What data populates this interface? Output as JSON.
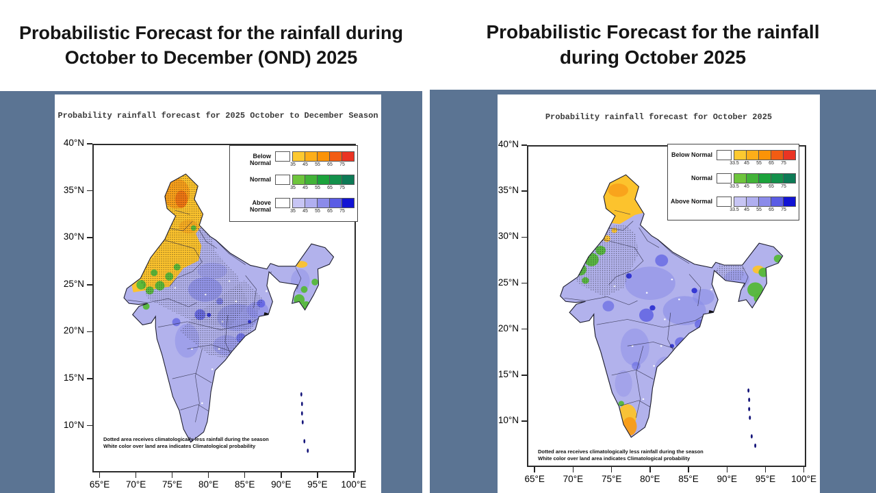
{
  "page": {
    "background_color": "#5b7493",
    "divider_color": "#ffffff"
  },
  "palette": {
    "map_base": "#b2b2ec",
    "blue_mid": "#8b8de8",
    "blue_deep": "#5a5de2",
    "blue_darkest": "#2023cf",
    "green": "#55b83a",
    "yellow": "#fcc32d",
    "orange": "#f89c18",
    "orange_deep": "#ef6f12",
    "red": "#e03420",
    "island_dark": "#15157a",
    "map_border": "#1d1d2e"
  },
  "panels": [
    {
      "header_title": [
        "Probabilistic Forecast for the rainfall during",
        "October to December (OND) 2025"
      ],
      "figure_title": "Probability rainfall forecast for 2025 October to December Season",
      "y_axis_ticks": [
        "40°N",
        "35°N",
        "30°N",
        "25°N",
        "20°N",
        "15°N",
        "10°N"
      ],
      "x_axis_ticks": [
        "65°E",
        "70°E",
        "75°E",
        "80°E",
        "85°E",
        "90°E",
        "95°E",
        "100°E"
      ],
      "legend_rows": [
        {
          "label": "Below Normal",
          "ticks": [
            "35",
            "45",
            "55",
            "65",
            "75"
          ],
          "colors": [
            "#ffffff",
            "#fdc930",
            "#fdae19",
            "#fb9307",
            "#f25c13",
            "#ea3423"
          ]
        },
        {
          "label": "Normal",
          "ticks": [
            "35",
            "45",
            "55",
            "65",
            "75"
          ],
          "colors": [
            "#ffffff",
            "#6ec53c",
            "#42b338",
            "#1ba23b",
            "#13914b",
            "#0d7a55"
          ]
        },
        {
          "label": "Above Normal",
          "ticks": [
            "35",
            "45",
            "55",
            "65",
            "75"
          ],
          "colors": [
            "#ffffff",
            "#c7c5f4",
            "#b0aff0",
            "#8b8bea",
            "#5a5ce5",
            "#1113d4"
          ]
        }
      ],
      "footnote": [
        "Dotted area receives climatologically less rainfall during the season",
        "White color over land area indicates Climatological probability"
      ]
    },
    {
      "header_title": [
        "Probabilistic Forecast for the rainfall",
        "during October 2025"
      ],
      "figure_title": "Probability rainfall forecast for October 2025",
      "y_axis_ticks": [
        "40°N",
        "35°N",
        "30°N",
        "25°N",
        "20°N",
        "15°N",
        "10°N"
      ],
      "x_axis_ticks": [
        "65°E",
        "70°E",
        "75°E",
        "80°E",
        "85°E",
        "90°E",
        "95°E",
        "100°E"
      ],
      "legend_rows": [
        {
          "label": "Below Normal",
          "ticks": [
            "33.5",
            "45",
            "55",
            "65",
            "75"
          ],
          "colors": [
            "#ffffff",
            "#fdc930",
            "#fdae19",
            "#fb9307",
            "#f25c13",
            "#ea3423"
          ]
        },
        {
          "label": "Normal",
          "ticks": [
            "33.5",
            "45",
            "55",
            "65",
            "75"
          ],
          "colors": [
            "#ffffff",
            "#6ec53c",
            "#42b338",
            "#1ba23b",
            "#13914b",
            "#0d7a55"
          ]
        },
        {
          "label": "Above Normal",
          "ticks": [
            "33.5",
            "45",
            "55",
            "65",
            "75"
          ],
          "colors": [
            "#ffffff",
            "#c7c5f4",
            "#b0aff0",
            "#8b8bea",
            "#5a5ce5",
            "#1113d4"
          ]
        }
      ],
      "footnote": [
        "Dotted area receives climatologically less rainfall during the season",
        "White color over land area indicates Climatological probability"
      ]
    }
  ]
}
